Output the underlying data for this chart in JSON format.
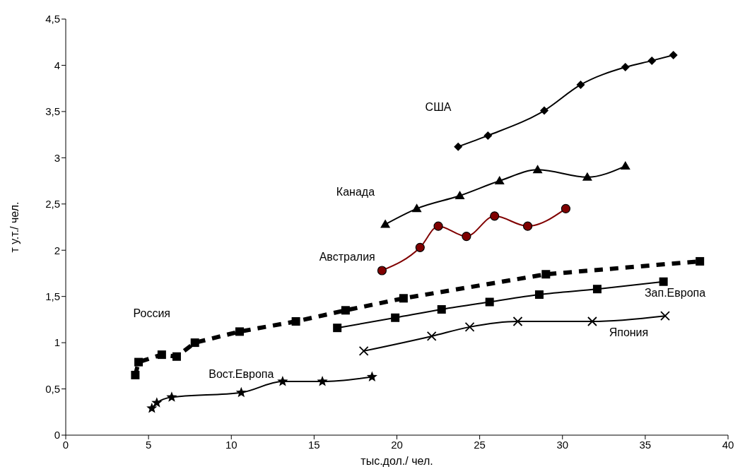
{
  "chart_data": {
    "type": "line",
    "xlabel": "тыс.дол./ чел.",
    "ylabel": "т у.т./ чел.",
    "xlim": [
      0,
      40
    ],
    "xticks": [
      0,
      5,
      10,
      15,
      20,
      25,
      30,
      35,
      40
    ],
    "ylim": [
      0,
      4.5
    ],
    "yticks": [
      0,
      {
        "value": 0.5,
        "label": "0,5"
      },
      1,
      {
        "value": 1.5,
        "label": "1,5"
      },
      2,
      {
        "value": 2.5,
        "label": "2,5"
      },
      3,
      {
        "value": 3.5,
        "label": "3,5"
      },
      4,
      {
        "value": 4.5,
        "label": "4,5"
      }
    ],
    "grid": false,
    "series": [
      {
        "name": "США",
        "color": "#000000",
        "marker": "diamond",
        "line_style": "solid",
        "x": [
          23.7,
          25.5,
          28.9,
          31.1,
          33.8,
          35.4,
          36.7
        ],
        "values": [
          3.12,
          3.24,
          3.51,
          3.79,
          3.98,
          4.05,
          4.11
        ]
      },
      {
        "name": "Канада",
        "color": "#000000",
        "marker": "triangle",
        "line_style": "solid",
        "x": [
          19.3,
          21.2,
          23.8,
          26.2,
          28.5,
          31.5,
          33.8
        ],
        "values": [
          2.28,
          2.45,
          2.59,
          2.75,
          2.87,
          2.79,
          2.91
        ]
      },
      {
        "name": "Австралия",
        "color": "#800000",
        "marker": "circle",
        "line_style": "solid",
        "x": [
          19.1,
          21.4,
          22.5,
          24.2,
          25.9,
          27.9,
          30.2
        ],
        "values": [
          1.78,
          2.03,
          2.26,
          2.15,
          2.37,
          2.26,
          2.45
        ]
      },
      {
        "name": "Россия",
        "color": "#000000",
        "marker": "square",
        "line_style": "dashed",
        "x": [
          4.2,
          4.4,
          5.8,
          6.7,
          7.8,
          10.5,
          13.9,
          16.9,
          20.4,
          29.0,
          38.3
        ],
        "values": [
          0.65,
          0.79,
          0.87,
          0.85,
          1.0,
          1.12,
          1.23,
          1.35,
          1.48,
          1.74,
          1.88
        ]
      },
      {
        "name": "Зап.Европа",
        "color": "#000000",
        "marker": "square",
        "line_style": "solid",
        "x": [
          16.4,
          19.9,
          22.7,
          25.6,
          28.6,
          32.1,
          36.1
        ],
        "values": [
          1.16,
          1.27,
          1.36,
          1.44,
          1.52,
          1.58,
          1.66
        ]
      },
      {
        "name": "Япония",
        "color": "#000000",
        "marker": "cross",
        "line_style": "solid",
        "x": [
          18.0,
          22.1,
          24.4,
          27.3,
          31.8,
          36.2
        ],
        "values": [
          0.91,
          1.07,
          1.17,
          1.23,
          1.23,
          1.29
        ]
      },
      {
        "name": "Вост.Европа",
        "color": "#000000",
        "marker": "star",
        "line_style": "solid",
        "x": [
          5.2,
          5.5,
          6.4,
          10.6,
          13.1,
          15.5,
          18.5
        ],
        "values": [
          0.29,
          0.35,
          0.41,
          0.46,
          0.58,
          0.58,
          0.63
        ]
      }
    ]
  }
}
